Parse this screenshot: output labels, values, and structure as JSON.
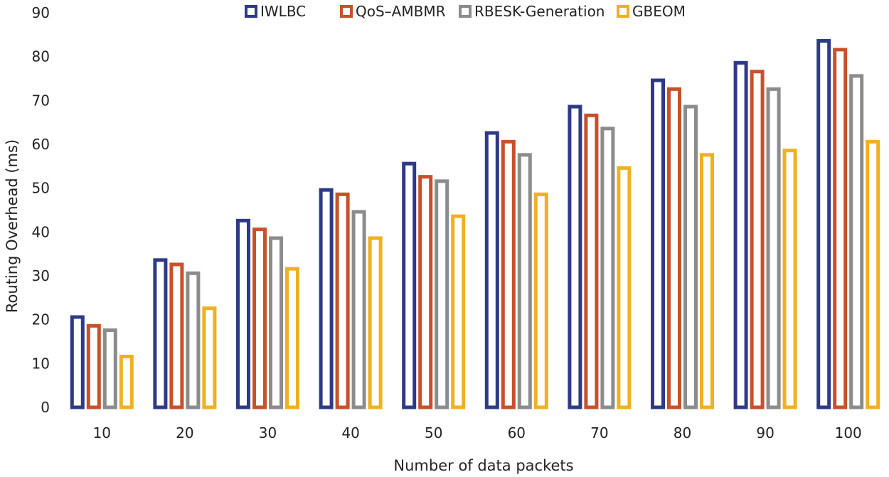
{
  "chart_data": {
    "type": "bar",
    "title": "",
    "xlabel": "Number of data packets",
    "ylabel": "Routing Overhead (ms)",
    "ylim": [
      0,
      90
    ],
    "yticks": [
      0,
      10,
      20,
      30,
      40,
      50,
      60,
      70,
      80,
      90
    ],
    "grid": false,
    "legend_position": "top",
    "categories": [
      "10",
      "20",
      "30",
      "40",
      "50",
      "60",
      "70",
      "80",
      "90",
      "100"
    ],
    "series": [
      {
        "name": "IWLBC",
        "color": "#2e3a87",
        "values": [
          21,
          34,
          43,
          50,
          56,
          63,
          69,
          75,
          79,
          84
        ]
      },
      {
        "name": "QoS–AMBMR",
        "color": "#c8502a",
        "values": [
          19,
          33,
          41,
          49,
          53,
          61,
          67,
          73,
          77,
          82
        ]
      },
      {
        "name": "RBESK-Generation",
        "color": "#8c8c8c",
        "values": [
          18,
          31,
          39,
          45,
          52,
          58,
          64,
          69,
          73,
          76
        ]
      },
      {
        "name": "GBEOM",
        "color": "#f0b020",
        "values": [
          12,
          23,
          32,
          39,
          44,
          49,
          55,
          58,
          59,
          61
        ]
      }
    ]
  }
}
